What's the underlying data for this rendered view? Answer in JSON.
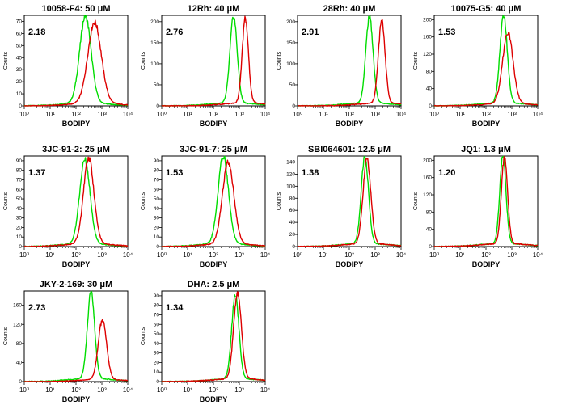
{
  "figure": {
    "panels": [
      {
        "title": "10058-F4: 50 μM",
        "ratio": "2.18",
        "xlabel": "BODIPY",
        "ylabel": "Counts",
        "yticks": [
          0,
          10,
          20,
          30,
          40,
          50,
          60,
          70
        ]
      },
      {
        "title": "12Rh: 40 μM",
        "ratio": "2.76",
        "xlabel": "BODIPY",
        "ylabel": "Counts",
        "yticks": [
          0,
          50,
          100,
          150,
          200
        ]
      },
      {
        "title": "28Rh: 40 μM",
        "ratio": "2.91",
        "xlabel": "BODIPY",
        "ylabel": "Counts",
        "yticks": [
          0,
          50,
          100,
          150,
          200
        ]
      },
      {
        "title": "10075-G5: 40 μM",
        "ratio": "1.53",
        "xlabel": "BODIPY",
        "ylabel": "Counts",
        "yticks": [
          0,
          40,
          80,
          120,
          160,
          200
        ]
      },
      {
        "title": "3JC-91-2: 25 μM",
        "ratio": "1.37",
        "xlabel": "BODIPY",
        "ylabel": "Counts",
        "yticks": [
          0,
          10,
          20,
          30,
          40,
          50,
          60,
          70,
          80,
          90
        ]
      },
      {
        "title": "3JC-91-7: 25 μM",
        "ratio": "1.53",
        "xlabel": "BODIPY",
        "ylabel": "Counts",
        "yticks": [
          0,
          10,
          20,
          30,
          40,
          50,
          60,
          70,
          80,
          90
        ]
      },
      {
        "title": "SBI064601: 12.5 μM",
        "ratio": "1.38",
        "xlabel": "BODIPY",
        "ylabel": "Counts",
        "yticks": [
          0,
          20,
          40,
          60,
          80,
          100,
          120,
          140
        ]
      },
      {
        "title": "JQ1: 1.3 μM",
        "ratio": "1.20",
        "xlabel": "BODIPY",
        "ylabel": "Counts",
        "yticks": [
          0,
          40,
          80,
          120,
          160,
          200
        ]
      },
      {
        "title": "JKY-2-169: 30 μM",
        "ratio": "2.73",
        "xlabel": "BODIPY",
        "ylabel": "Counts",
        "yticks": [
          0,
          40,
          80,
          120,
          160
        ]
      },
      {
        "title": "DHA: 2.5 μM",
        "ratio": "1.34",
        "xlabel": "BODIPY",
        "ylabel": "Counts",
        "yticks": [
          0,
          10,
          20,
          30,
          40,
          50,
          60,
          70,
          80,
          90
        ]
      }
    ]
  },
  "chart_data": [
    {
      "type": "line",
      "title": "10058-F4: 50 μM",
      "annotation": "2.18",
      "xlabel": "BODIPY",
      "ylabel": "Counts",
      "xscale": "log",
      "xlim": [
        1,
        10000
      ],
      "ylim": [
        0,
        75
      ],
      "xticks": [
        "10⁰",
        "10¹",
        "10²",
        "10³",
        "10⁴"
      ],
      "series": [
        {
          "color": "#00dd00",
          "peak_x": 230,
          "peak_y": 72,
          "width": 0.22
        },
        {
          "color": "#dd0000",
          "peak_x": 520,
          "peak_y": 67,
          "width": 0.26
        }
      ]
    },
    {
      "type": "line",
      "title": "12Rh: 40 μM",
      "annotation": "2.76",
      "xlabel": "BODIPY",
      "ylabel": "Counts",
      "xscale": "log",
      "xlim": [
        1,
        10000
      ],
      "ylim": [
        0,
        215
      ],
      "xticks": [
        "10⁰",
        "10¹",
        "10²",
        "10³",
        "10⁴"
      ],
      "series": [
        {
          "color": "#00dd00",
          "peak_x": 600,
          "peak_y": 205,
          "width": 0.14
        },
        {
          "color": "#dd0000",
          "peak_x": 1700,
          "peak_y": 200,
          "width": 0.12
        }
      ]
    },
    {
      "type": "line",
      "title": "28Rh: 40 μM",
      "annotation": "2.91",
      "xlabel": "BODIPY",
      "ylabel": "Counts",
      "xscale": "log",
      "xlim": [
        1,
        10000
      ],
      "ylim": [
        0,
        215
      ],
      "xticks": [
        "10⁰",
        "10¹",
        "10²",
        "10³",
        "10⁴"
      ],
      "series": [
        {
          "color": "#00dd00",
          "peak_x": 600,
          "peak_y": 205,
          "width": 0.14
        },
        {
          "color": "#dd0000",
          "peak_x": 1800,
          "peak_y": 195,
          "width": 0.13
        }
      ]
    },
    {
      "type": "line",
      "title": "10075-G5: 40 μM",
      "annotation": "1.53",
      "xlabel": "BODIPY",
      "ylabel": "Counts",
      "xscale": "log",
      "xlim": [
        1,
        10000
      ],
      "ylim": [
        0,
        210
      ],
      "xticks": [
        "10⁰",
        "10¹",
        "10²",
        "10³",
        "10⁴"
      ],
      "series": [
        {
          "color": "#00dd00",
          "peak_x": 480,
          "peak_y": 205,
          "width": 0.14
        },
        {
          "color": "#dd0000",
          "peak_x": 700,
          "peak_y": 165,
          "width": 0.2
        }
      ]
    },
    {
      "type": "line",
      "title": "3JC-91-2: 25 μM",
      "annotation": "1.37",
      "xlabel": "BODIPY",
      "ylabel": "Counts",
      "xscale": "log",
      "xlim": [
        1,
        10000
      ],
      "ylim": [
        0,
        95
      ],
      "xticks": [
        "10⁰",
        "10¹",
        "10²",
        "10³",
        "10⁴"
      ],
      "series": [
        {
          "color": "#00dd00",
          "peak_x": 220,
          "peak_y": 88,
          "width": 0.2
        },
        {
          "color": "#dd0000",
          "peak_x": 310,
          "peak_y": 90,
          "width": 0.2
        }
      ]
    },
    {
      "type": "line",
      "title": "3JC-91-7: 25 μM",
      "annotation": "1.53",
      "xlabel": "BODIPY",
      "ylabel": "Counts",
      "xscale": "log",
      "xlim": [
        1,
        10000
      ],
      "ylim": [
        0,
        95
      ],
      "xticks": [
        "10⁰",
        "10¹",
        "10²",
        "10³",
        "10⁴"
      ],
      "series": [
        {
          "color": "#00dd00",
          "peak_x": 240,
          "peak_y": 92,
          "width": 0.2
        },
        {
          "color": "#dd0000",
          "peak_x": 370,
          "peak_y": 86,
          "width": 0.22
        }
      ]
    },
    {
      "type": "line",
      "title": "SBI064601: 12.5 μM",
      "annotation": "1.38",
      "xlabel": "BODIPY",
      "ylabel": "Counts",
      "xscale": "log",
      "xlim": [
        1,
        10000
      ],
      "ylim": [
        0,
        150
      ],
      "xticks": [
        "10⁰",
        "10¹",
        "10²",
        "10³",
        "10⁴"
      ],
      "series": [
        {
          "color": "#00dd00",
          "peak_x": 400,
          "peak_y": 145,
          "width": 0.14
        },
        {
          "color": "#dd0000",
          "peak_x": 480,
          "peak_y": 140,
          "width": 0.15
        }
      ]
    },
    {
      "type": "line",
      "title": "JQ1: 1.3 μM",
      "annotation": "1.20",
      "xlabel": "BODIPY",
      "ylabel": "Counts",
      "xscale": "log",
      "xlim": [
        1,
        10000
      ],
      "ylim": [
        0,
        210
      ],
      "xticks": [
        "10⁰",
        "10¹",
        "10²",
        "10³",
        "10⁴"
      ],
      "series": [
        {
          "color": "#00dd00",
          "peak_x": 450,
          "peak_y": 205,
          "width": 0.12
        },
        {
          "color": "#dd0000",
          "peak_x": 520,
          "peak_y": 200,
          "width": 0.12
        }
      ]
    },
    {
      "type": "line",
      "title": "JKY-2-169: 30 μM",
      "annotation": "2.73",
      "xlabel": "BODIPY",
      "ylabel": "Counts",
      "xscale": "log",
      "xlim": [
        1,
        10000
      ],
      "ylim": [
        0,
        190
      ],
      "xticks": [
        "10⁰",
        "10¹",
        "10²",
        "10³",
        "10⁴"
      ],
      "series": [
        {
          "color": "#00dd00",
          "peak_x": 380,
          "peak_y": 182,
          "width": 0.14
        },
        {
          "color": "#dd0000",
          "peak_x": 1050,
          "peak_y": 125,
          "width": 0.16
        }
      ]
    },
    {
      "type": "line",
      "title": "DHA: 2.5 μM",
      "annotation": "1.34",
      "xlabel": "BODIPY",
      "ylabel": "Counts",
      "xscale": "log",
      "xlim": [
        1,
        10000
      ],
      "ylim": [
        0,
        95
      ],
      "xticks": [
        "10⁰",
        "10¹",
        "10²",
        "10³",
        "10⁴"
      ],
      "series": [
        {
          "color": "#00dd00",
          "peak_x": 700,
          "peak_y": 88,
          "width": 0.14
        },
        {
          "color": "#dd0000",
          "peak_x": 850,
          "peak_y": 90,
          "width": 0.15
        }
      ]
    }
  ]
}
